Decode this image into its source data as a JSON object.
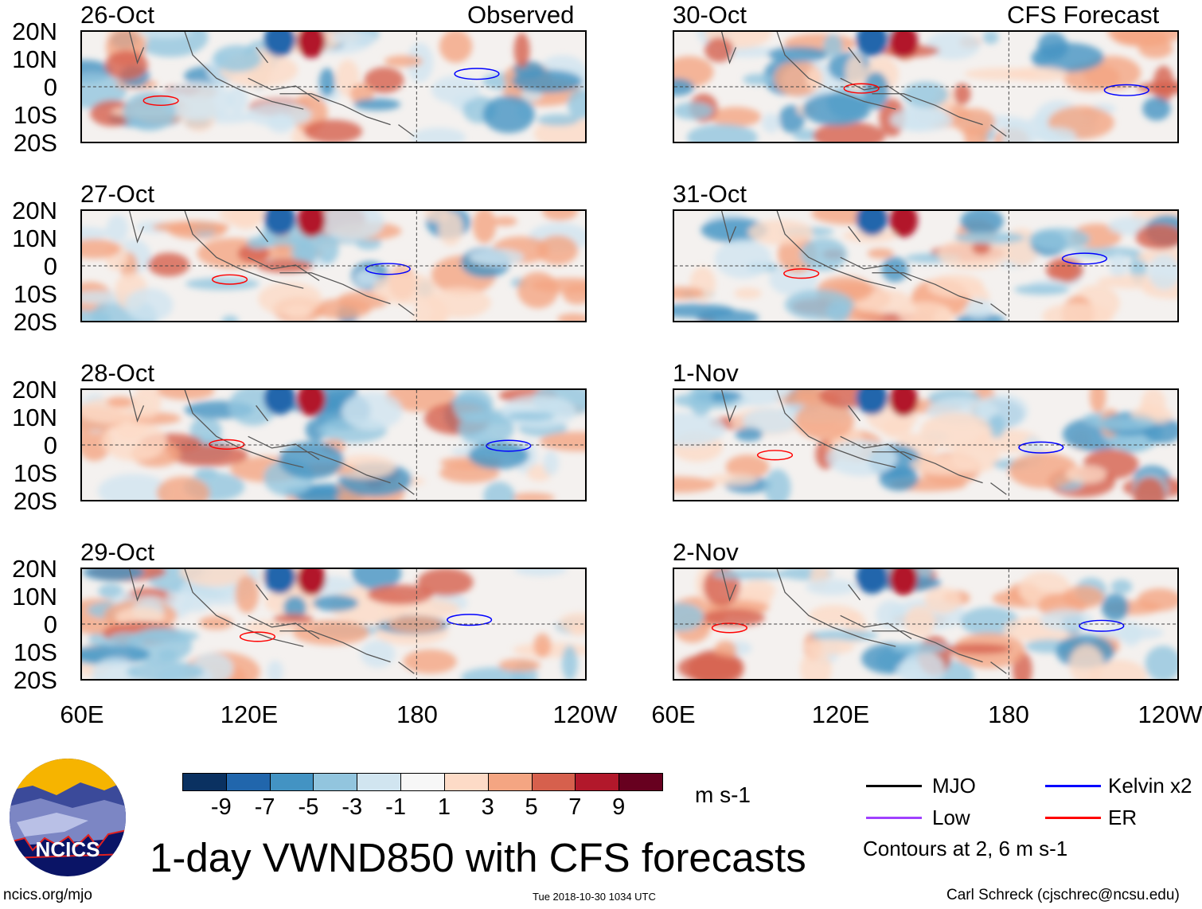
{
  "title": "1-day VWND850 with CFS forecasts",
  "left_column_label": "Observed",
  "right_column_label": "CFS Forecast",
  "left_panels": [
    {
      "date": "26-Oct"
    },
    {
      "date": "27-Oct"
    },
    {
      "date": "28-Oct"
    },
    {
      "date": "29-Oct"
    }
  ],
  "right_panels": [
    {
      "date": "30-Oct"
    },
    {
      "date": "31-Oct"
    },
    {
      "date": "1-Nov"
    },
    {
      "date": "2-Nov"
    }
  ],
  "lat_labels": [
    "20N",
    "10N",
    "0",
    "10S",
    "20S"
  ],
  "lon_labels": [
    "60E",
    "120E",
    "180",
    "120W"
  ],
  "colorbar": {
    "colors": [
      "#0a3161",
      "#2166ac",
      "#4393c3",
      "#92c5de",
      "#d1e5f0",
      "#f7f7f7",
      "#fddbc7",
      "#f4a582",
      "#d6604d",
      "#b2182b",
      "#67001f"
    ],
    "ticks": [
      "-9",
      "-7",
      "-5",
      "-3",
      "-1",
      "1",
      "3",
      "5",
      "7",
      "9"
    ],
    "units": "m s-1"
  },
  "legend": {
    "items": [
      {
        "label": "MJO",
        "color": "#000000"
      },
      {
        "label": "Kelvin x2",
        "color": "#0000ff"
      },
      {
        "label": "Low",
        "color": "#a040ff"
      },
      {
        "label": "ER",
        "color": "#ff0000"
      }
    ],
    "contours_note": "Contours at 2, 6 m s-1"
  },
  "logo": {
    "text": "NCICS"
  },
  "footer": {
    "url": "ncics.org/mjo",
    "timestamp": "Tue 2018-10-30 1034 UTC",
    "credit": "Carl Schreck (cjschrec@ncsu.edu)"
  }
}
